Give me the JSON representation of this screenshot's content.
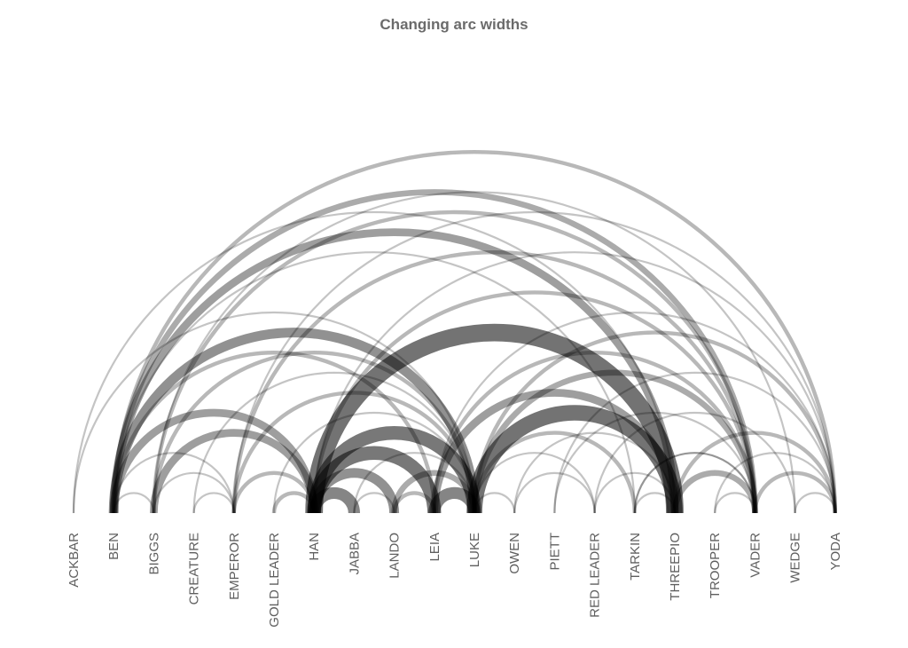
{
  "chart_data": {
    "type": "arc",
    "title": "Changing arc widths",
    "nodes": [
      "ACKBAR",
      "BEN",
      "BIGGS",
      "CREATURE",
      "EMPEROR",
      "GOLD LEADER",
      "HAN",
      "JABBA",
      "LANDO",
      "LEIA",
      "LUKE",
      "OWEN",
      "PIETT",
      "RED LEADER",
      "TARKIN",
      "THREEPIO",
      "TROOPER",
      "VADER",
      "WEDGE",
      "YODA"
    ],
    "links": [
      {
        "source": "HAN",
        "target": "THREEPIO",
        "weight": 9
      },
      {
        "source": "LUKE",
        "target": "THREEPIO",
        "weight": 8
      },
      {
        "source": "HAN",
        "target": "LEIA",
        "weight": 7
      },
      {
        "source": "HAN",
        "target": "LUKE",
        "weight": 7
      },
      {
        "source": "BEN",
        "target": "LUKE",
        "weight": 5
      },
      {
        "source": "BEN",
        "target": "VADER",
        "weight": 3
      },
      {
        "source": "BEN",
        "target": "THREEPIO",
        "weight": 4
      },
      {
        "source": "BEN",
        "target": "HAN",
        "weight": 4
      },
      {
        "source": "BEN",
        "target": "YODA",
        "weight": 2
      },
      {
        "source": "BEN",
        "target": "LEIA",
        "weight": 2
      },
      {
        "source": "BIGGS",
        "target": "HAN",
        "weight": 4
      },
      {
        "source": "BIGGS",
        "target": "LUKE",
        "weight": 2
      },
      {
        "source": "BIGGS",
        "target": "VADER",
        "weight": 2
      },
      {
        "source": "EMPEROR",
        "target": "LUKE",
        "weight": 2
      },
      {
        "source": "EMPEROR",
        "target": "VADER",
        "weight": 2
      },
      {
        "source": "EMPEROR",
        "target": "HAN",
        "weight": 2
      },
      {
        "source": "GOLD LEADER",
        "target": "HAN",
        "weight": 2
      },
      {
        "source": "HAN",
        "target": "LANDO",
        "weight": 5
      },
      {
        "source": "HAN",
        "target": "JABBA",
        "weight": 6
      },
      {
        "source": "LANDO",
        "target": "LEIA",
        "weight": 2
      },
      {
        "source": "LANDO",
        "target": "LUKE",
        "weight": 3
      },
      {
        "source": "LEIA",
        "target": "LUKE",
        "weight": 6
      },
      {
        "source": "LEIA",
        "target": "THREEPIO",
        "weight": 4
      },
      {
        "source": "LUKE",
        "target": "VADER",
        "weight": 3
      },
      {
        "source": "LUKE",
        "target": "YODA",
        "weight": 2
      },
      {
        "source": "LUKE",
        "target": "TARKIN",
        "weight": 2
      },
      {
        "source": "LUKE",
        "target": "RED LEADER",
        "weight": 1
      },
      {
        "source": "LUKE",
        "target": "OWEN",
        "weight": 1
      },
      {
        "source": "HAN",
        "target": "VADER",
        "weight": 2
      },
      {
        "source": "HAN",
        "target": "YODA",
        "weight": 1
      },
      {
        "source": "LEIA",
        "target": "VADER",
        "weight": 2
      },
      {
        "source": "LEIA",
        "target": "YODA",
        "weight": 1
      },
      {
        "source": "THREEPIO",
        "target": "VADER",
        "weight": 3
      },
      {
        "source": "THREEPIO",
        "target": "YODA",
        "weight": 2
      },
      {
        "source": "THREEPIO",
        "target": "TARKIN",
        "weight": 1
      },
      {
        "source": "VADER",
        "target": "YODA",
        "weight": 2
      },
      {
        "source": "VADER",
        "target": "TARKIN",
        "weight": 1
      },
      {
        "source": "VADER",
        "target": "TROOPER",
        "weight": 1
      },
      {
        "source": "BEN",
        "target": "BIGGS",
        "weight": 1
      },
      {
        "source": "CREATURE",
        "target": "EMPEROR",
        "weight": 1
      },
      {
        "source": "OWEN",
        "target": "RED LEADER",
        "weight": 1
      },
      {
        "source": "RED LEADER",
        "target": "THREEPIO",
        "weight": 1
      },
      {
        "source": "TARKIN",
        "target": "VADER",
        "weight": 1
      },
      {
        "source": "WEDGE",
        "target": "YODA",
        "weight": 1
      },
      {
        "source": "BEN",
        "target": "EMPEROR",
        "weight": 1
      },
      {
        "source": "BIGGS",
        "target": "EMPEROR",
        "weight": 1
      },
      {
        "source": "ACKBAR",
        "target": "LUKE",
        "weight": 1
      },
      {
        "source": "ACKBAR",
        "target": "THREEPIO",
        "weight": 1
      },
      {
        "source": "PIETT",
        "target": "VADER",
        "weight": 1
      },
      {
        "source": "PIETT",
        "target": "YODA",
        "weight": 1
      },
      {
        "source": "CREATURE",
        "target": "LUKE",
        "weight": 1
      },
      {
        "source": "JABBA",
        "target": "LUKE",
        "weight": 1
      },
      {
        "source": "JABBA",
        "target": "LANDO",
        "weight": 1
      },
      {
        "source": "OWEN",
        "target": "THREEPIO",
        "weight": 1
      },
      {
        "source": "RED LEADER",
        "target": "WEDGE",
        "weight": 1
      },
      {
        "source": "BIGGS",
        "target": "WEDGE",
        "weight": 1
      },
      {
        "source": "BEN",
        "target": "TARKIN",
        "weight": 1
      },
      {
        "source": "EMPEROR",
        "target": "YODA",
        "weight": 1
      },
      {
        "source": "GOLD LEADER",
        "target": "LUKE",
        "weight": 1
      },
      {
        "source": "TROOPER",
        "target": "YODA",
        "weight": 1
      }
    ]
  }
}
